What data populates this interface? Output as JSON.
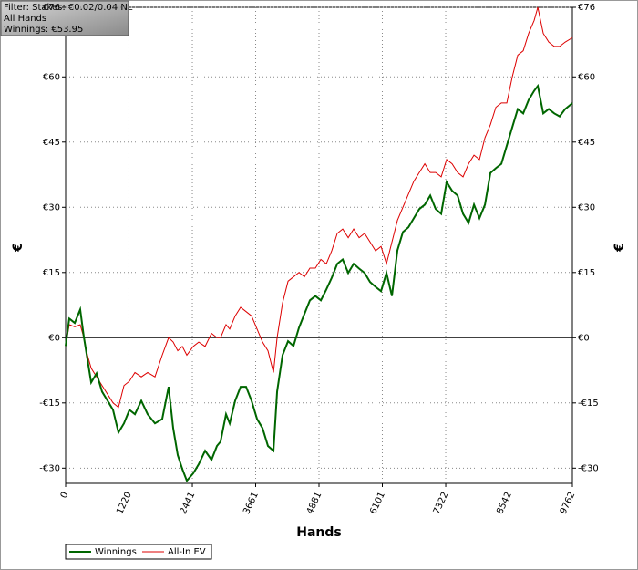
{
  "chart_data": {
    "type": "line",
    "annotation": [
      "Filter: Stakes: €0.02/0.04 NL",
      "All Hands",
      "Winnings: €53.95"
    ],
    "x_label": "Hands",
    "y_label": "€",
    "xlim": [
      0,
      9762
    ],
    "xticks": [
      0,
      1220,
      2441,
      3661,
      4881,
      6101,
      7322,
      8542,
      9762
    ],
    "ylim": [
      -33.5,
      76
    ],
    "yticks": [
      {
        "value": -30,
        "label": "-€30"
      },
      {
        "value": -15,
        "label": "-€15"
      },
      {
        "value": 0,
        "label": "€0"
      },
      {
        "value": 15,
        "label": "€15"
      },
      {
        "value": 30,
        "label": "€30"
      },
      {
        "value": 45,
        "label": "€45"
      },
      {
        "value": 60,
        "label": "€60"
      },
      {
        "value": 76,
        "label": "€76"
      }
    ],
    "grid": true,
    "legend": "bottom-left",
    "x": [
      0,
      70,
      176,
      281,
      351,
      421,
      492,
      597,
      702,
      808,
      913,
      1018,
      1124,
      1229,
      1335,
      1458,
      1580,
      1721,
      1861,
      1984,
      2072,
      2160,
      2248,
      2335,
      2458,
      2564,
      2687,
      2810,
      2915,
      2985,
      3090,
      3161,
      3266,
      3371,
      3477,
      3582,
      3688,
      3793,
      3898,
      4004,
      4074,
      4179,
      4285,
      4390,
      4495,
      4601,
      4706,
      4811,
      4917,
      5022,
      5127,
      5233,
      5338,
      5444,
      5549,
      5654,
      5760,
      5865,
      5970,
      6076,
      6181,
      6286,
      6392,
      6497,
      6603,
      6708,
      6813,
      6919,
      7024,
      7129,
      7235,
      7340,
      7445,
      7551,
      7656,
      7762,
      7867,
      7972,
      8078,
      8183,
      8288,
      8394,
      8499,
      8604,
      8710,
      8815,
      8920,
      9026,
      9096,
      9201,
      9307,
      9412,
      9517,
      9623,
      9762
    ],
    "series": [
      {
        "name": "Winnings",
        "color": "#006600",
        "values": [
          -1.9,
          4.4,
          3.4,
          6.5,
          0.2,
          -5.0,
          -10.3,
          -8.2,
          -12.4,
          -14.5,
          -16.6,
          -21.8,
          -19.7,
          -16.6,
          -17.6,
          -14.5,
          -17.6,
          -19.7,
          -18.7,
          -11.3,
          -20.8,
          -27.0,
          -30.2,
          -32.9,
          -31.2,
          -29.1,
          -26.0,
          -28.1,
          -24.9,
          -23.9,
          -17.6,
          -19.7,
          -14.5,
          -11.3,
          -11.3,
          -14.5,
          -18.7,
          -20.8,
          -24.9,
          -26.0,
          -12.4,
          -4.0,
          -0.8,
          -1.9,
          2.3,
          5.5,
          8.6,
          9.6,
          8.6,
          11.1,
          13.8,
          17.0,
          18.0,
          14.9,
          17.0,
          15.9,
          14.9,
          12.8,
          11.7,
          10.7,
          14.9,
          9.6,
          20.1,
          24.3,
          25.4,
          27.5,
          29.6,
          30.6,
          32.7,
          29.6,
          28.5,
          35.8,
          33.8,
          32.7,
          28.5,
          26.4,
          30.6,
          27.5,
          30.6,
          37.9,
          39.0,
          40.0,
          44.2,
          48.4,
          52.6,
          51.6,
          54.7,
          56.8,
          57.9,
          51.6,
          52.6,
          51.6,
          50.9,
          52.6,
          53.95
        ]
      },
      {
        "name": "All-In EV",
        "color": "#dd0000",
        "values": [
          -1.9,
          3,
          2.5,
          3,
          0,
          -4,
          -7,
          -9,
          -11,
          -13,
          -15,
          -16,
          -11,
          -10,
          -8,
          -9,
          -8,
          -9,
          -4,
          0,
          -1,
          -3,
          -2,
          -4,
          -2,
          -1,
          -2,
          1,
          0,
          0,
          3,
          2,
          5,
          7,
          6,
          5,
          2,
          -1,
          -3,
          -8,
          0,
          8,
          13,
          14,
          15,
          14,
          16,
          16,
          18,
          17,
          20,
          24,
          25,
          23,
          25,
          23,
          24,
          22,
          20,
          21,
          17,
          22,
          27,
          30,
          33,
          36,
          38,
          40,
          38,
          38,
          37,
          41,
          40,
          38,
          37,
          40,
          42,
          41,
          46,
          49,
          53,
          54,
          54,
          60,
          65,
          66,
          70,
          73,
          76,
          70,
          68,
          67,
          67,
          68,
          69
        ]
      }
    ]
  }
}
